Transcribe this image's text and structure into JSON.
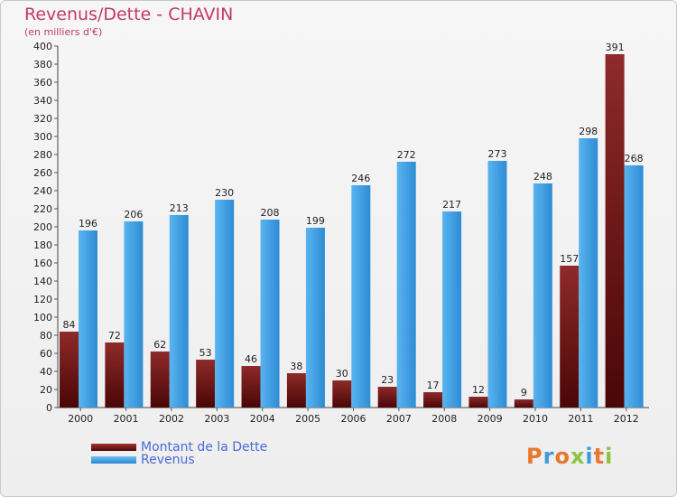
{
  "header": {
    "title": "Revenus/Dette - CHAVIN",
    "subtitle": "(en milliers d'€)"
  },
  "legend": {
    "items": [
      {
        "label": "Montant de la Dette",
        "color": "#7a1a1a"
      },
      {
        "label": "Revenus",
        "color": "#3a9be0"
      }
    ]
  },
  "logo": {
    "text": "Proxiti"
  },
  "chart_data": {
    "type": "bar",
    "title": "Revenus/Dette - CHAVIN",
    "subtitle": "(en milliers d'€)",
    "categories": [
      "2000",
      "2001",
      "2002",
      "2003",
      "2004",
      "2005",
      "2006",
      "2007",
      "2008",
      "2009",
      "2010",
      "2011",
      "2012"
    ],
    "series": [
      {
        "name": "Montant de la Dette",
        "color": "#7a1a1a",
        "values": [
          84,
          72,
          62,
          53,
          46,
          38,
          30,
          23,
          17,
          12,
          9,
          157,
          391
        ]
      },
      {
        "name": "Revenus",
        "color": "#3a9be0",
        "values": [
          196,
          206,
          213,
          230,
          208,
          199,
          246,
          272,
          217,
          273,
          248,
          298,
          268
        ]
      }
    ],
    "ylim": [
      0,
      400
    ],
    "ytick_step": 20,
    "grid": false,
    "legend_position": "bottom-left"
  }
}
